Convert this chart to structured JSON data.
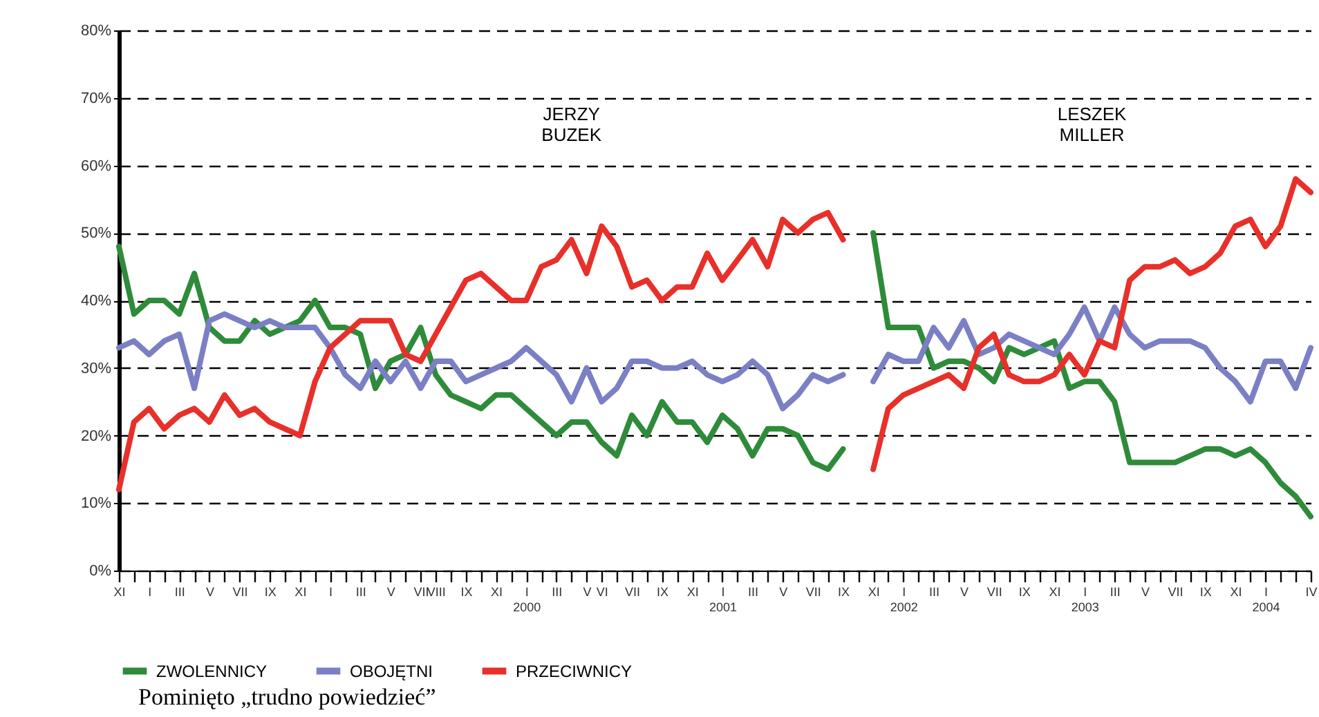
{
  "chart_data": {
    "type": "line",
    "categories": [
      "XI",
      null,
      "I",
      null,
      "III",
      null,
      "V",
      null,
      "VII",
      null,
      "IX",
      null,
      "XI",
      null,
      "I",
      null,
      "III",
      null,
      "V",
      null,
      "VII",
      "VIII",
      null,
      "IX",
      null,
      "XI",
      null,
      "I\n2000",
      null,
      "III",
      null,
      "V",
      "VI",
      null,
      "VII",
      null,
      "IX",
      null,
      "XI",
      null,
      "I\n2001",
      null,
      "III",
      null,
      "V",
      null,
      "VII",
      null,
      "IX",
      null,
      "XI",
      null,
      "I\n2002",
      null,
      "III",
      null,
      "V",
      null,
      "VII",
      null,
      "IX",
      null,
      "XI",
      null,
      "I\n2003",
      null,
      "III",
      null,
      "V",
      null,
      "VII",
      null,
      "IX",
      null,
      "XI",
      null,
      "I\n2004",
      null,
      null,
      "IV"
    ],
    "series": [
      {
        "name": "ZWOLENNICY",
        "color": "#2e8b3a",
        "values": [
          48,
          38,
          40,
          40,
          38,
          44,
          36,
          34,
          34,
          37,
          35,
          36,
          37,
          40,
          36,
          36,
          35,
          27,
          31,
          32,
          36,
          29,
          26,
          25,
          24,
          26,
          26,
          24,
          22,
          20,
          22,
          22,
          19,
          17,
          23,
          20,
          25,
          22,
          22,
          19,
          23,
          21,
          17,
          21,
          21,
          20,
          16,
          15,
          18,
          null,
          50,
          36,
          36,
          36,
          30,
          31,
          31,
          30,
          28,
          33,
          32,
          33,
          34,
          27,
          28,
          28,
          25,
          16,
          16,
          16,
          16,
          17,
          18,
          18,
          17,
          18,
          16,
          13,
          11,
          8
        ]
      },
      {
        "name": "OBOJĘTNI",
        "color": "#7b7fc4",
        "values": [
          33,
          34,
          32,
          34,
          35,
          27,
          37,
          38,
          37,
          36,
          37,
          36,
          36,
          36,
          33,
          29,
          27,
          31,
          28,
          31,
          27,
          31,
          31,
          28,
          29,
          30,
          31,
          33,
          31,
          29,
          25,
          30,
          25,
          27,
          31,
          31,
          30,
          30,
          31,
          29,
          28,
          29,
          31,
          29,
          24,
          26,
          29,
          28,
          29,
          null,
          28,
          32,
          31,
          31,
          36,
          33,
          37,
          32,
          33,
          35,
          34,
          33,
          32,
          35,
          39,
          34,
          39,
          35,
          33,
          34,
          34,
          34,
          33,
          30,
          28,
          25,
          31,
          31,
          27,
          33
        ]
      },
      {
        "name": "PRZECIWNICY",
        "color": "#e8302a",
        "values": [
          12,
          22,
          24,
          21,
          23,
          24,
          22,
          26,
          23,
          24,
          22,
          21,
          20,
          28,
          33,
          35,
          37,
          37,
          37,
          32,
          31,
          35,
          39,
          43,
          44,
          42,
          40,
          40,
          45,
          46,
          49,
          44,
          51,
          48,
          42,
          43,
          40,
          42,
          42,
          47,
          43,
          46,
          49,
          45,
          52,
          50,
          52,
          53,
          49,
          null,
          15,
          24,
          26,
          27,
          28,
          29,
          27,
          33,
          35,
          29,
          28,
          28,
          29,
          32,
          29,
          34,
          33,
          43,
          45,
          45,
          46,
          44,
          45,
          47,
          51,
          52,
          48,
          51,
          58,
          56
        ]
      }
    ],
    "ylim": [
      0,
      80
    ],
    "yticks": [
      {
        "value": 0,
        "label": "0%"
      },
      {
        "value": 10,
        "label": "10%"
      },
      {
        "value": 20,
        "label": "20%"
      },
      {
        "value": 30,
        "label": "30%"
      },
      {
        "value": 40,
        "label": "40%"
      },
      {
        "value": 50,
        "label": "50%"
      },
      {
        "value": 60,
        "label": "60%"
      },
      {
        "value": 70,
        "label": "70%"
      },
      {
        "value": 80,
        "label": "80%"
      }
    ],
    "grid": "y",
    "legend": "bottom",
    "marker": "none",
    "line_style": "solid",
    "annotations": [
      "JERZY BUZEK",
      "LESZEK MILLER",
      "Pominięto „trudno powiedzieć”"
    ]
  }
}
